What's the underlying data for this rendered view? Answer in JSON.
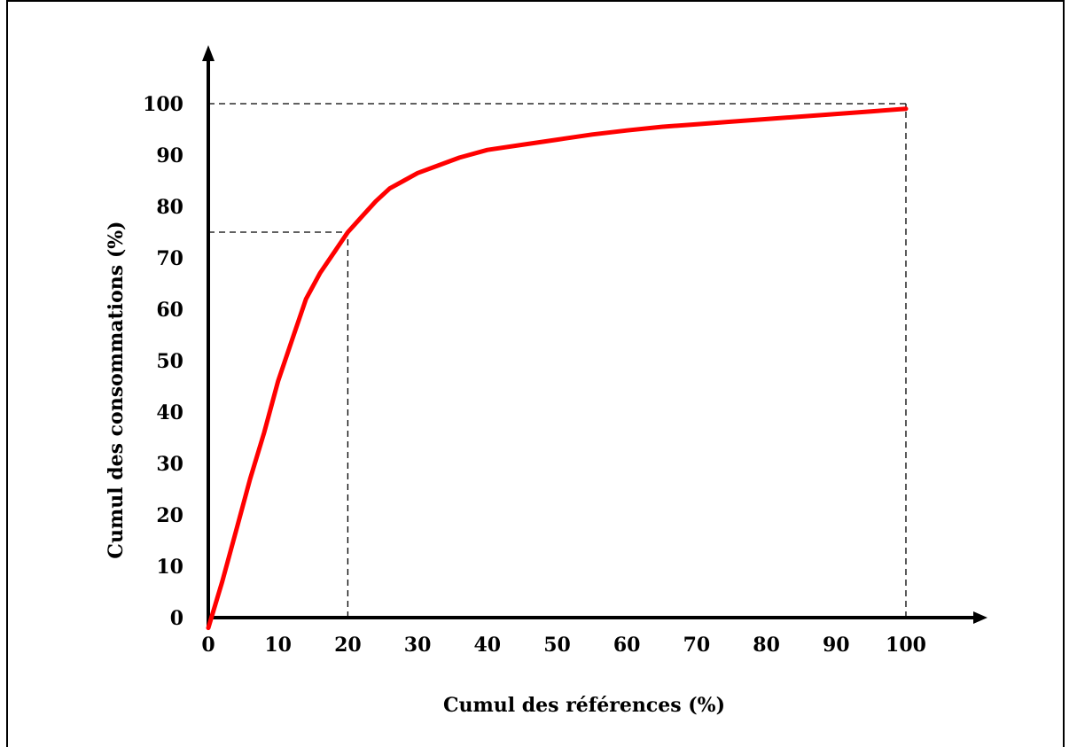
{
  "chart_data": {
    "type": "line",
    "xlabel": "Cumul des références (%)",
    "ylabel": "Cumul des consommations (%)",
    "xlim": [
      0,
      110
    ],
    "ylim": [
      0,
      110
    ],
    "x_ticks": [
      0,
      10,
      20,
      30,
      40,
      50,
      60,
      70,
      80,
      90,
      100
    ],
    "y_ticks": [
      0,
      10,
      20,
      30,
      40,
      50,
      60,
      70,
      80,
      90,
      100
    ],
    "grid": false,
    "colors": {
      "curve": "#ff0000",
      "axes": "#000000",
      "reference_lines": "#000000"
    },
    "series": [
      {
        "x": [
          0,
          2,
          4,
          6,
          8,
          10,
          12,
          14,
          16,
          18,
          20,
          22,
          24,
          26,
          28,
          30,
          33,
          36,
          40,
          45,
          50,
          55,
          60,
          65,
          70,
          75,
          80,
          85,
          90,
          95,
          100
        ],
        "y": [
          -2,
          7,
          17,
          27,
          36,
          46,
          54,
          62,
          67,
          71,
          75,
          78,
          81,
          83.5,
          85,
          86.5,
          88,
          89.5,
          91,
          92,
          93,
          94,
          94.8,
          95.5,
          96,
          96.5,
          97,
          97.5,
          98,
          98.5,
          99
        ]
      }
    ],
    "reference_lines": [
      {
        "type": "vertical",
        "x": 20,
        "y_to": 75
      },
      {
        "type": "horizontal",
        "y": 75,
        "x_to": 20
      },
      {
        "type": "vertical",
        "x": 100,
        "y_to": 100
      },
      {
        "type": "horizontal",
        "y": 100,
        "x_to": 100
      }
    ]
  }
}
